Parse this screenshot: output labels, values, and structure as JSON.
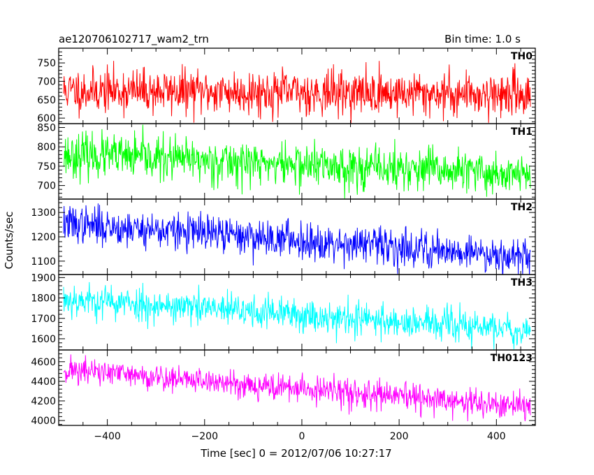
{
  "chart_data": {
    "type": "line",
    "title": "ae120706102717_wam2_trn",
    "subtitle": "Bin time: 1.0 s",
    "xlabel": "Time [sec] 0 = 2012/07/06 10:27:17",
    "ylabel": "Counts/sec",
    "xlim": [
      -500,
      480
    ],
    "x_ticks": [
      -400,
      -200,
      0,
      200,
      400
    ],
    "x_tick_labels": [
      "−400",
      "−200",
      "0",
      "200",
      "400"
    ],
    "x_range": [
      -490,
      470
    ],
    "grid": false,
    "legend": "none",
    "panels": [
      {
        "name": "TH0",
        "color": "#ff0000",
        "ylim": [
          585,
          790
        ],
        "y_ticks": [
          600,
          650,
          700,
          750
        ],
        "y_tick_labels": [
          "600",
          "650",
          "700",
          "750"
        ],
        "trend": [
          [
            -490,
            675
          ],
          [
            470,
            665
          ]
        ],
        "noise": 30,
        "seed": 11
      },
      {
        "name": "TH1",
        "color": "#00ff00",
        "ylim": [
          665,
          860
        ],
        "y_ticks": [
          700,
          750,
          800,
          850
        ],
        "y_tick_labels": [
          "700",
          "750",
          "800",
          "850"
        ],
        "trend": [
          [
            -490,
            780
          ],
          [
            470,
            728
          ]
        ],
        "noise": 28,
        "seed": 23
      },
      {
        "name": "TH2",
        "color": "#0000ff",
        "ylim": [
          1045,
          1355
        ],
        "y_ticks": [
          1100,
          1200,
          1300
        ],
        "y_tick_labels": [
          "1100",
          "1200",
          "1300"
        ],
        "trend": [
          [
            -490,
            1255
          ],
          [
            470,
            1120
          ]
        ],
        "noise": 38,
        "seed": 37
      },
      {
        "name": "TH3",
        "color": "#00ffff",
        "ylim": [
          1545,
          1915
        ],
        "y_ticks": [
          1600,
          1700,
          1800,
          1900
        ],
        "y_tick_labels": [
          "1600",
          "1700",
          "1800",
          "1900"
        ],
        "trend": [
          [
            -490,
            1795
          ],
          [
            470,
            1640
          ]
        ],
        "noise": 42,
        "seed": 53
      },
      {
        "name": "TH0123",
        "color": "#ff00ff",
        "ylim": [
          3950,
          4720
        ],
        "y_ticks": [
          4000,
          4200,
          4400,
          4600
        ],
        "y_tick_labels": [
          "4000",
          "4200",
          "4400",
          "4600"
        ],
        "trend": [
          [
            -490,
            4520
          ],
          [
            470,
            4130
          ]
        ],
        "noise": 70,
        "seed": 71
      }
    ]
  }
}
